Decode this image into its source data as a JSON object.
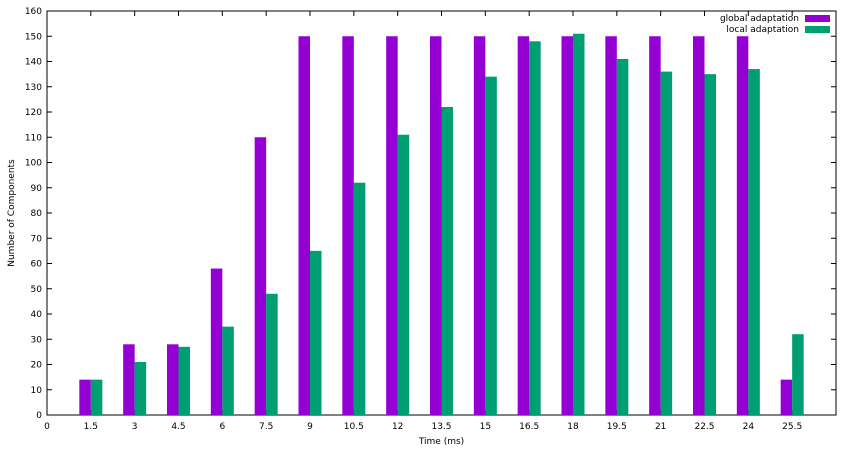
{
  "chart_data": {
    "type": "bar",
    "x": [
      1.5,
      3,
      4.5,
      6,
      7.5,
      9,
      10.5,
      12,
      13.5,
      15,
      16.5,
      18,
      19.5,
      21,
      22.5,
      24,
      25.5
    ],
    "xticks": [
      "0",
      "1.5",
      "3",
      "4.5",
      "6",
      "7.5",
      "9",
      "10.5",
      "12",
      "13.5",
      "15",
      "16.5",
      "18",
      "19.5",
      "21",
      "22.5",
      "24",
      "25.5"
    ],
    "yticks": [
      "0",
      "10",
      "20",
      "30",
      "40",
      "50",
      "60",
      "70",
      "80",
      "90",
      "100",
      "110",
      "120",
      "130",
      "140",
      "150",
      "160"
    ],
    "series": [
      {
        "name": "global adaptation",
        "color": "#9400d3",
        "values": [
          14,
          28,
          28,
          58,
          110,
          150,
          150,
          150,
          150,
          150,
          150,
          150,
          150,
          150,
          150,
          150,
          14
        ]
      },
      {
        "name": "local adaptation",
        "color": "#009e73",
        "values": [
          14,
          21,
          27,
          35,
          48,
          65,
          92,
          111,
          122,
          134,
          148,
          151,
          141,
          136,
          135,
          137,
          32
        ]
      }
    ],
    "xlabel": "Time (ms)",
    "ylabel": "Number of Components",
    "xlim": [
      0,
      27
    ],
    "ylim": [
      0,
      160
    ],
    "grid": false,
    "legend_position": "top-right"
  }
}
